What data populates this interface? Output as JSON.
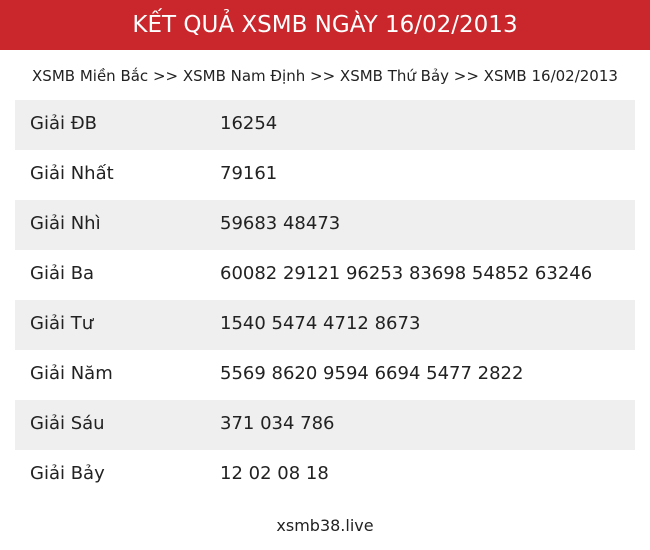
{
  "header": {
    "title": "KẾT QUẢ XSMB NGÀY 16/02/2013"
  },
  "breadcrumb": "XSMB Miền Bắc >> XSMB Nam Định >> XSMB Thứ Bảy >> XSMB 16/02/2013",
  "table": {
    "rows": [
      [
        "Giải ĐB",
        "16254"
      ],
      [
        "Giải Nhất",
        "79161"
      ],
      [
        "Giải Nhì",
        "59683 48473"
      ],
      [
        "Giải Ba",
        "60082 29121 96253 83698 54852 63246"
      ],
      [
        "Giải Tư",
        "1540 5474 4712 8673"
      ],
      [
        "Giải Năm",
        "5569 8620 9594 6694 5477 2822"
      ],
      [
        "Giải Sáu",
        "371 034 786"
      ],
      [
        "Giải Bảy",
        "12 02 08 18"
      ]
    ]
  },
  "footer": "xsmb38.live"
}
